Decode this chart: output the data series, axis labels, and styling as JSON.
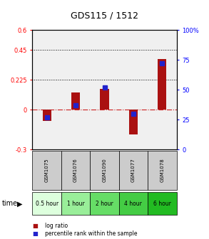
{
  "title": "GDS115 / 1512",
  "samples": [
    "GSM1075",
    "GSM1076",
    "GSM1090",
    "GSM1077",
    "GSM1078"
  ],
  "time_labels": [
    "0.5 hour",
    "1 hour",
    "2 hour",
    "4 hour",
    "6 hour"
  ],
  "time_colors": [
    "#ddffdd",
    "#99ee99",
    "#66dd66",
    "#44cc44",
    "#22bb22"
  ],
  "log_ratios": [
    -0.085,
    0.13,
    0.155,
    -0.19,
    0.38
  ],
  "percentile_ranks": [
    27,
    37,
    52,
    30,
    72
  ],
  "ylim_left": [
    -0.3,
    0.6
  ],
  "ylim_right": [
    0,
    100
  ],
  "yticks_left": [
    -0.3,
    0,
    0.225,
    0.45,
    0.6
  ],
  "ytick_labels_left": [
    "-0.3",
    "0",
    "0.225",
    "0.45",
    "0.6"
  ],
  "yticks_right": [
    0,
    25,
    50,
    75,
    100
  ],
  "ytick_labels_right": [
    "0",
    "25",
    "50",
    "75",
    "100%"
  ],
  "hlines": [
    0.225,
    0.45
  ],
  "bar_color": "#aa1111",
  "dot_color": "#2222cc",
  "zero_line_color": "#cc2222",
  "background_color": "#ffffff",
  "legend_bar_label": "log ratio",
  "legend_dot_label": "percentile rank within the sample",
  "time_row_label": "time"
}
